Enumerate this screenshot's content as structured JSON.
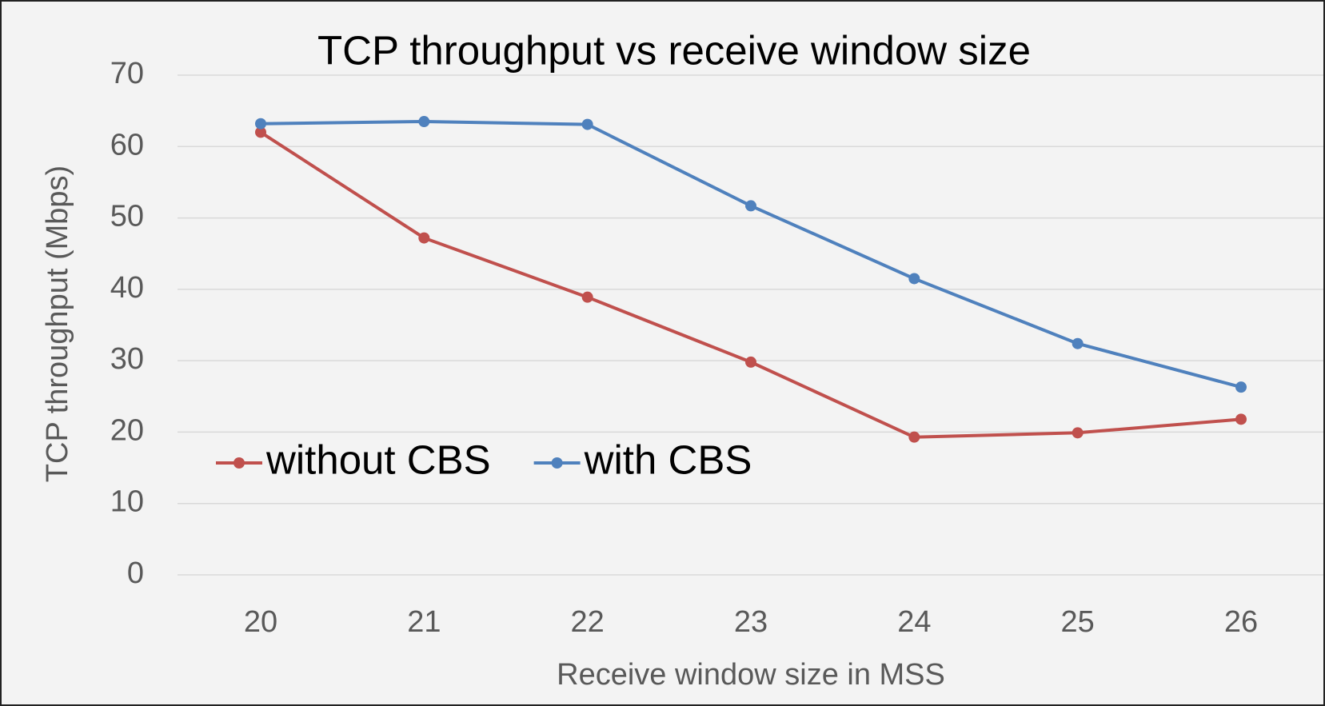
{
  "chart_data": {
    "type": "line",
    "title": "TCP throughput vs receive window size",
    "xlabel": "Receive window size in MSS",
    "ylabel": "TCP throughput (Mbps)",
    "categories": [
      "20",
      "21",
      "22",
      "23",
      "24",
      "25",
      "26"
    ],
    "series": [
      {
        "name": "without CBS",
        "color": "#c0504d",
        "values": [
          62,
          47.2,
          38.9,
          29.8,
          19.3,
          19.9,
          21.8
        ]
      },
      {
        "name": "with CBS",
        "color": "#4f81bd",
        "values": [
          63.2,
          63.5,
          63.1,
          51.7,
          41.5,
          32.4,
          26.3
        ]
      }
    ],
    "ylim": [
      0,
      70
    ],
    "yticks": [
      0,
      10,
      20,
      30,
      40,
      50,
      60,
      70
    ],
    "grid": true,
    "legend": "left"
  }
}
